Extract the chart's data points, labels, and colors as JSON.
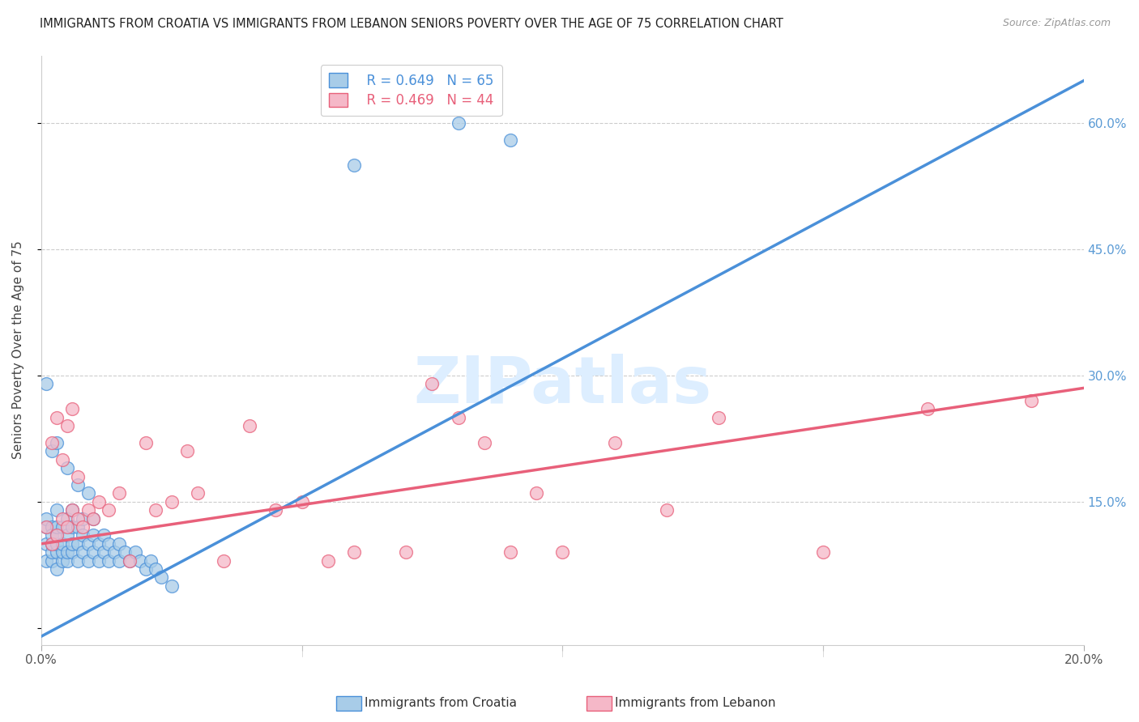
{
  "title": "IMMIGRANTS FROM CROATIA VS IMMIGRANTS FROM LEBANON SENIORS POVERTY OVER THE AGE OF 75 CORRELATION CHART",
  "source": "Source: ZipAtlas.com",
  "ylabel": "Seniors Poverty Over the Age of 75",
  "xlim": [
    0.0,
    0.2
  ],
  "ylim": [
    -0.02,
    0.68
  ],
  "yticks": [
    0.0,
    0.15,
    0.3,
    0.45,
    0.6
  ],
  "ytick_labels_right": [
    "",
    "15.0%",
    "30.0%",
    "45.0%",
    "60.0%"
  ],
  "xticks": [
    0.0,
    0.05,
    0.1,
    0.15,
    0.2
  ],
  "xtick_labels": [
    "0.0%",
    "",
    "",
    "",
    "20.0%"
  ],
  "croatia_R": 0.649,
  "croatia_N": 65,
  "lebanon_R": 0.469,
  "lebanon_N": 44,
  "croatia_color": "#a8cce8",
  "lebanon_color": "#f5b8c8",
  "croatia_edge_color": "#4a90d9",
  "lebanon_edge_color": "#e8607a",
  "croatia_line_color": "#4a90d9",
  "lebanon_line_color": "#e8607a",
  "background_color": "#ffffff",
  "grid_color": "#cccccc",
  "watermark_text": "ZIPatlas",
  "watermark_color": "#ddeeff",
  "legend_edge_color": "#cccccc",
  "right_tick_color": "#5b9bd5",
  "title_color": "#222222",
  "source_color": "#999999",
  "ylabel_color": "#444444",
  "bottom_legend_color": "#333333",
  "croatia_x": [
    0.001,
    0.001,
    0.001,
    0.001,
    0.002,
    0.002,
    0.002,
    0.002,
    0.002,
    0.003,
    0.003,
    0.003,
    0.003,
    0.003,
    0.003,
    0.004,
    0.004,
    0.004,
    0.004,
    0.005,
    0.005,
    0.005,
    0.005,
    0.006,
    0.006,
    0.006,
    0.006,
    0.007,
    0.007,
    0.007,
    0.008,
    0.008,
    0.008,
    0.009,
    0.009,
    0.01,
    0.01,
    0.01,
    0.011,
    0.011,
    0.012,
    0.012,
    0.013,
    0.013,
    0.014,
    0.015,
    0.015,
    0.016,
    0.017,
    0.018,
    0.019,
    0.02,
    0.021,
    0.022,
    0.023,
    0.025,
    0.001,
    0.002,
    0.003,
    0.005,
    0.007,
    0.009,
    0.06,
    0.08,
    0.09
  ],
  "croatia_y": [
    0.08,
    0.1,
    0.12,
    0.13,
    0.08,
    0.09,
    0.1,
    0.12,
    0.11,
    0.07,
    0.09,
    0.1,
    0.11,
    0.12,
    0.14,
    0.08,
    0.09,
    0.1,
    0.12,
    0.08,
    0.09,
    0.11,
    0.13,
    0.09,
    0.1,
    0.12,
    0.14,
    0.08,
    0.1,
    0.12,
    0.09,
    0.11,
    0.13,
    0.08,
    0.1,
    0.09,
    0.11,
    0.13,
    0.08,
    0.1,
    0.09,
    0.11,
    0.08,
    0.1,
    0.09,
    0.08,
    0.1,
    0.09,
    0.08,
    0.09,
    0.08,
    0.07,
    0.08,
    0.07,
    0.06,
    0.05,
    0.29,
    0.21,
    0.22,
    0.19,
    0.17,
    0.16,
    0.55,
    0.6,
    0.58
  ],
  "lebanon_x": [
    0.001,
    0.002,
    0.002,
    0.003,
    0.003,
    0.004,
    0.004,
    0.005,
    0.005,
    0.006,
    0.006,
    0.007,
    0.007,
    0.008,
    0.009,
    0.01,
    0.011,
    0.013,
    0.015,
    0.017,
    0.02,
    0.022,
    0.025,
    0.028,
    0.03,
    0.035,
    0.04,
    0.045,
    0.05,
    0.055,
    0.06,
    0.07,
    0.075,
    0.08,
    0.085,
    0.09,
    0.095,
    0.1,
    0.11,
    0.12,
    0.13,
    0.15,
    0.17,
    0.19
  ],
  "lebanon_y": [
    0.12,
    0.1,
    0.22,
    0.11,
    0.25,
    0.13,
    0.2,
    0.12,
    0.24,
    0.14,
    0.26,
    0.13,
    0.18,
    0.12,
    0.14,
    0.13,
    0.15,
    0.14,
    0.16,
    0.08,
    0.22,
    0.14,
    0.15,
    0.21,
    0.16,
    0.08,
    0.24,
    0.14,
    0.15,
    0.08,
    0.09,
    0.09,
    0.29,
    0.25,
    0.22,
    0.09,
    0.16,
    0.09,
    0.22,
    0.14,
    0.25,
    0.09,
    0.26,
    0.27
  ],
  "croatia_line_x": [
    0.0,
    0.2
  ],
  "croatia_line_y": [
    -0.01,
    0.65
  ],
  "lebanon_line_x": [
    0.0,
    0.2
  ],
  "lebanon_line_y": [
    0.1,
    0.285
  ]
}
